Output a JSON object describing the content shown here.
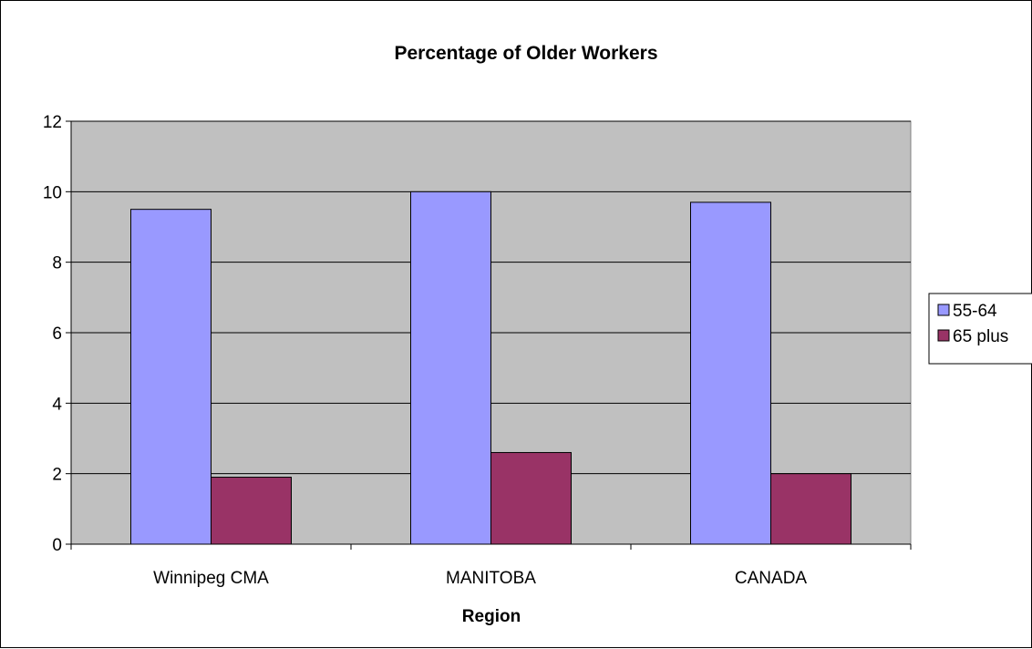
{
  "chart_data": {
    "type": "bar",
    "title": "Percentage of Older Workers",
    "xlabel": "Region",
    "ylabel": "",
    "categories": [
      "Winnipeg CMA",
      "MANITOBA",
      "CANADA"
    ],
    "series": [
      {
        "name": "55-64",
        "values": [
          9.5,
          10.0,
          9.7
        ],
        "color": "#9999FF"
      },
      {
        "name": "65 plus",
        "values": [
          1.9,
          2.6,
          2.0
        ],
        "color": "#993366"
      }
    ],
    "ylim": [
      0,
      12
    ],
    "yticks": [
      "0",
      "2",
      "4",
      "6",
      "8",
      "10",
      "12"
    ],
    "grid": true,
    "plot_background": "#C0C0C0",
    "legend": "right"
  }
}
